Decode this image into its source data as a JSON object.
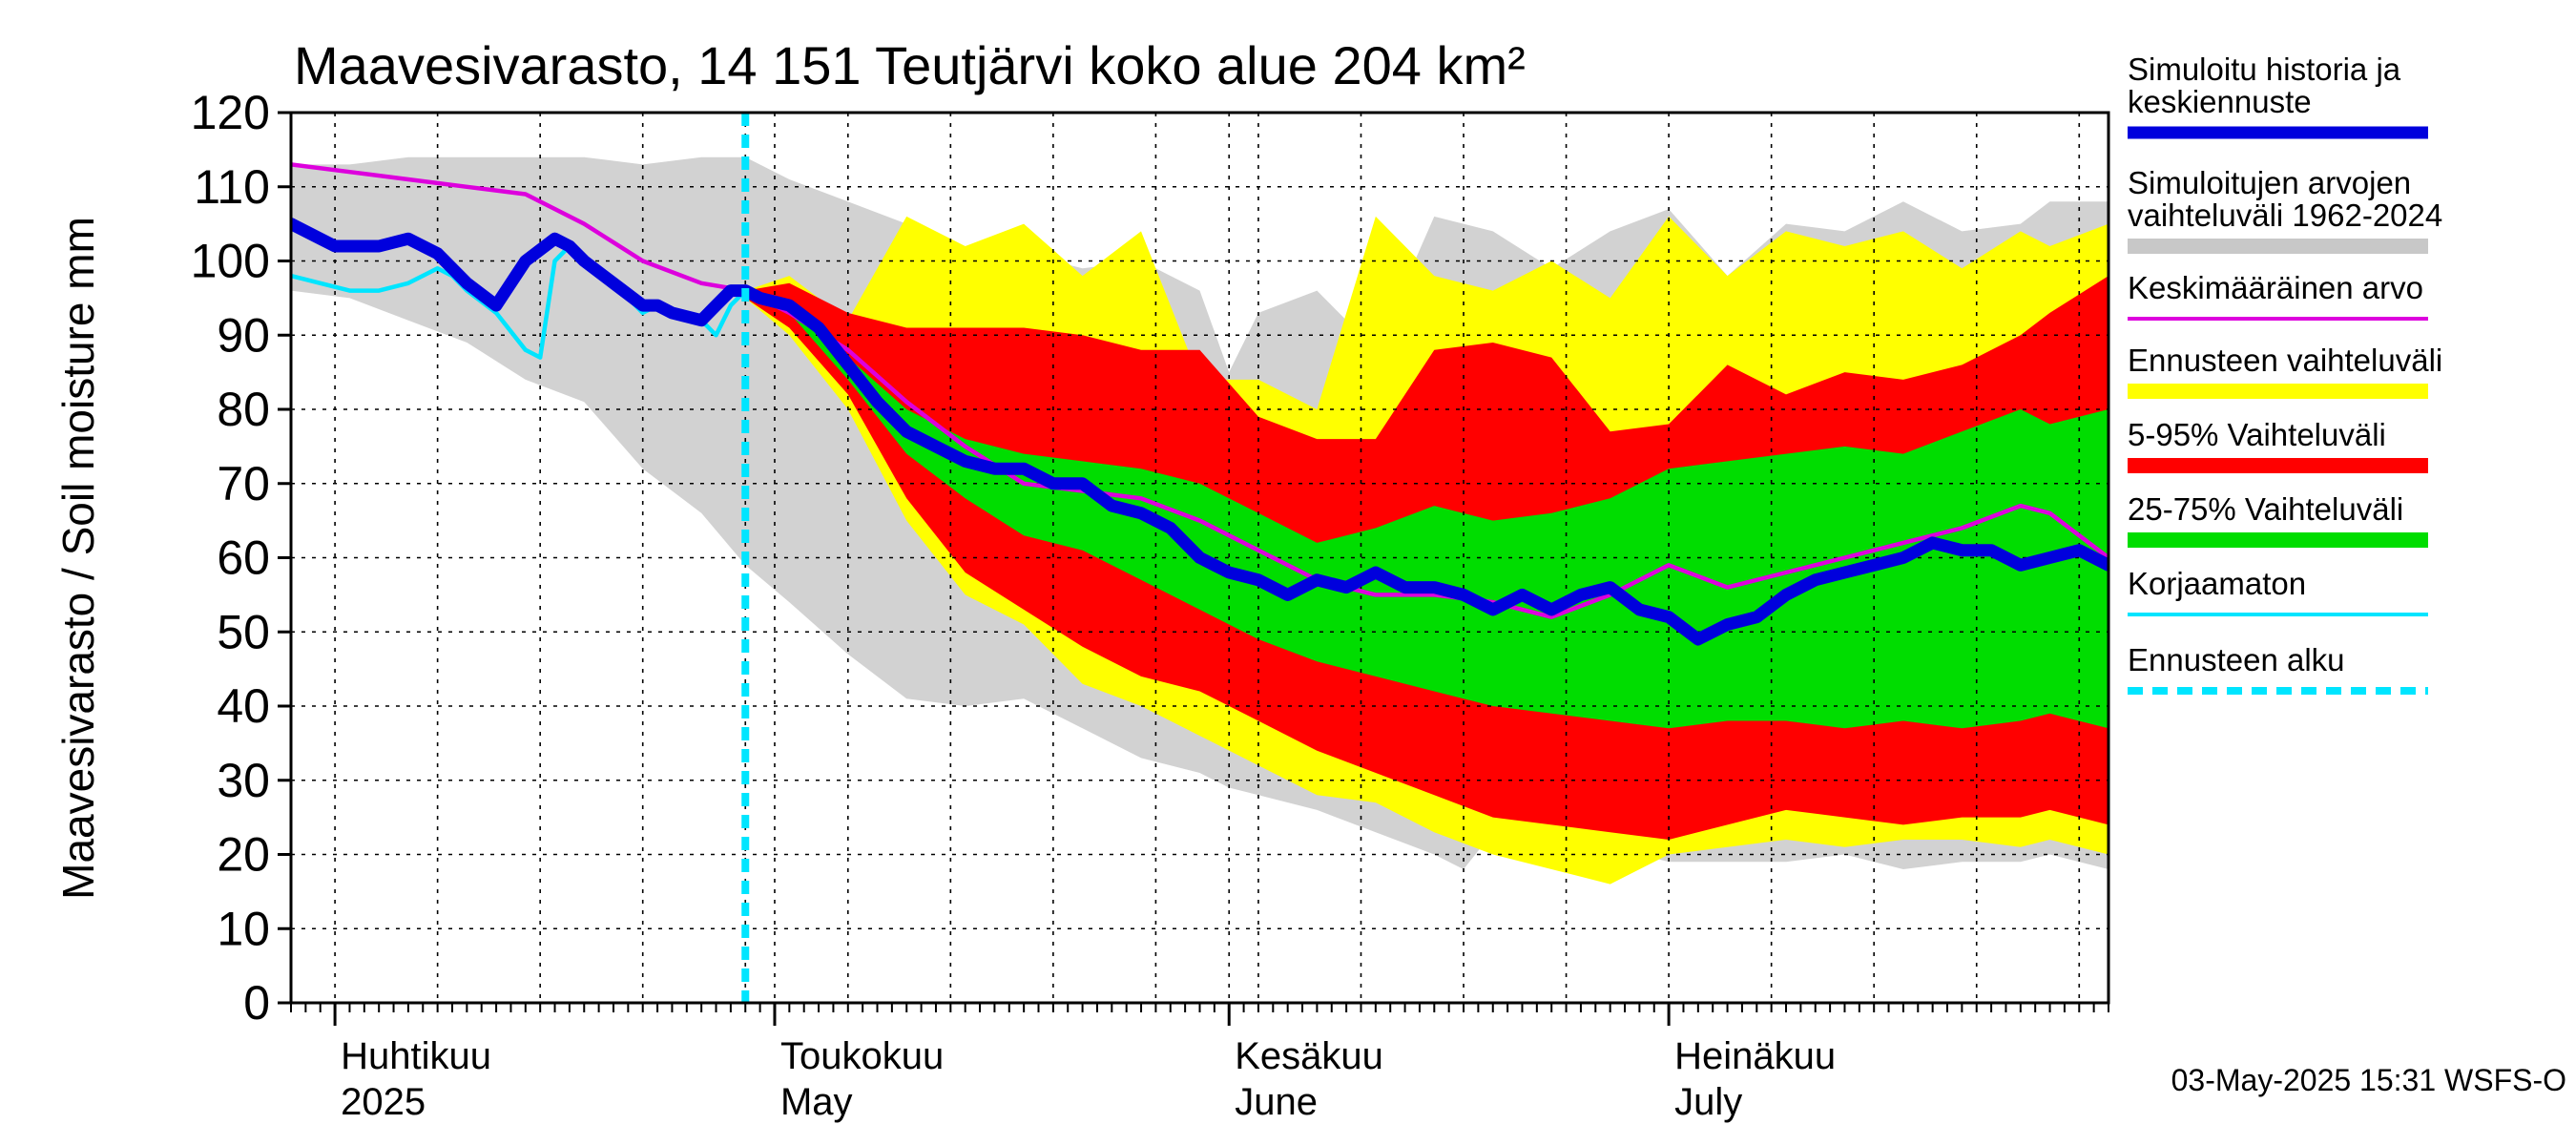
{
  "chart_data": {
    "type": "area",
    "title": "Maavesivarasto, 14 151 Teutjärvi koko alue 204 km²",
    "ylabel": "Maavesivarasto / Soil moisture   mm",
    "xlabel": "",
    "ylim": [
      0,
      120
    ],
    "yticks": [
      0,
      10,
      20,
      30,
      40,
      50,
      60,
      70,
      80,
      90,
      100,
      110,
      120
    ],
    "xlim_days": [
      0,
      124
    ],
    "x_unit": "days since 2025-03-29",
    "month_starts": [
      3,
      33,
      64,
      94
    ],
    "forecast_start": 31,
    "grid": true,
    "month_labels": [
      {
        "fi": "Huhtikuu",
        "en": "2025"
      },
      {
        "fi": "Toukokuu",
        "en": "May"
      },
      {
        "fi": "Kesäkuu",
        "en": "June"
      },
      {
        "fi": "Heinäkuu",
        "en": "July"
      }
    ],
    "legend": [
      {
        "label": "Simuloitu historia ja keskiennuste",
        "lines": [
          "Simuloitu historia ja",
          "keskiennuste"
        ],
        "color": "#0000dd",
        "style": "thick"
      },
      {
        "label": "Simuloitujen arvojen vaihteluväli 1962-2024",
        "lines": [
          "Simuloitujen arvojen",
          "vaihteluväli 1962-2024"
        ],
        "color": "#c8c8c8",
        "style": "band"
      },
      {
        "label": "Keskimääräinen arvo",
        "lines": [
          "Keskimääräinen arvo"
        ],
        "color": "#dd00dd",
        "style": "thin"
      },
      {
        "label": "Ennusteen vaihteluväli",
        "lines": [
          "Ennusteen vaihteluväli"
        ],
        "color": "#ffff00",
        "style": "band"
      },
      {
        "label": "5-95% Vaihteluväli",
        "lines": [
          "5-95% Vaihteluväli"
        ],
        "color": "#ff0000",
        "style": "band"
      },
      {
        "label": "25-75% Vaihteluväli",
        "lines": [
          "25-75% Vaihteluväli"
        ],
        "color": "#00dd00",
        "style": "band"
      },
      {
        "label": "Korjaamaton",
        "lines": [
          "Korjaamaton"
        ],
        "color": "#00e5ff",
        "style": "thin"
      },
      {
        "label": "Ennusteen alku",
        "lines": [
          "Ennusteen alku"
        ],
        "color": "#00e5ff",
        "style": "dashed"
      }
    ],
    "series": {
      "history_range": {
        "name": "Simuloitujen arvojen vaihteluväli 1962-2024",
        "x": [
          0,
          4,
          8,
          12,
          16,
          20,
          24,
          28,
          31,
          34,
          38,
          42,
          46,
          50,
          54,
          58,
          62,
          64,
          66,
          70,
          74,
          78,
          80,
          82,
          86,
          90,
          94,
          98,
          102,
          106,
          110,
          114,
          118,
          120,
          124
        ],
        "upper": [
          113,
          113,
          114,
          114,
          114,
          114,
          113,
          114,
          114,
          111,
          108,
          105,
          102,
          101,
          99,
          100,
          96,
          85,
          93,
          96,
          88,
          106,
          105,
          104,
          99,
          104,
          107,
          98,
          105,
          104,
          108,
          104,
          105,
          108,
          108
        ],
        "lower": [
          96,
          95,
          92,
          89,
          84,
          81,
          72,
          66,
          59,
          54,
          47,
          41,
          40,
          41,
          37,
          33,
          31,
          29,
          28,
          26,
          23,
          20,
          18,
          23,
          23,
          21,
          19,
          19,
          19,
          20,
          18,
          19,
          19,
          20,
          18
        ]
      },
      "forecast_range": {
        "name": "Ennusteen vaihteluväli",
        "x": [
          31,
          34,
          38,
          42,
          46,
          50,
          54,
          58,
          62,
          66,
          70,
          74,
          78,
          82,
          86,
          90,
          94,
          98,
          102,
          106,
          110,
          114,
          118,
          120,
          124
        ],
        "upper": [
          96,
          98,
          92,
          106,
          102,
          105,
          98,
          104,
          84,
          84,
          80,
          106,
          98,
          96,
          100,
          95,
          106,
          98,
          104,
          102,
          104,
          99,
          104,
          102,
          105
        ],
        "lower": [
          95,
          90,
          80,
          65,
          55,
          51,
          43,
          40,
          36,
          32,
          28,
          27,
          23,
          20,
          18,
          16,
          20,
          21,
          22,
          21,
          22,
          22,
          21,
          22,
          20
        ]
      },
      "p5_95": {
        "name": "5-95% Vaihteluväli",
        "x": [
          31,
          34,
          38,
          42,
          46,
          50,
          54,
          58,
          62,
          66,
          70,
          74,
          78,
          82,
          86,
          90,
          94,
          98,
          102,
          106,
          110,
          114,
          118,
          120,
          124
        ],
        "upper": [
          96,
          97,
          93,
          91,
          91,
          91,
          90,
          88,
          88,
          79,
          76,
          76,
          88,
          89,
          87,
          77,
          78,
          86,
          82,
          85,
          84,
          86,
          90,
          93,
          98
        ],
        "lower": [
          95,
          91,
          82,
          68,
          58,
          53,
          48,
          44,
          42,
          38,
          34,
          31,
          28,
          25,
          24,
          23,
          22,
          24,
          26,
          25,
          24,
          25,
          25,
          26,
          24
        ]
      },
      "p25_75": {
        "name": "25-75% Vaihteluväli",
        "x": [
          31,
          34,
          38,
          42,
          46,
          50,
          54,
          58,
          62,
          66,
          70,
          74,
          78,
          82,
          86,
          90,
          94,
          98,
          102,
          106,
          110,
          114,
          118,
          120,
          124
        ],
        "upper": [
          95,
          94,
          87,
          80,
          76,
          74,
          73,
          72,
          70,
          66,
          62,
          64,
          67,
          65,
          66,
          68,
          72,
          73,
          74,
          75,
          74,
          77,
          80,
          78,
          80
        ],
        "lower": [
          95,
          93,
          84,
          74,
          68,
          63,
          61,
          57,
          53,
          49,
          46,
          44,
          42,
          40,
          39,
          38,
          37,
          38,
          38,
          37,
          38,
          37,
          38,
          39,
          37
        ]
      },
      "mean": {
        "name": "Keskimääräinen arvo",
        "x": [
          0,
          4,
          8,
          12,
          16,
          20,
          24,
          28,
          31,
          34,
          38,
          42,
          46,
          50,
          54,
          58,
          62,
          66,
          70,
          74,
          78,
          82,
          86,
          90,
          94,
          98,
          102,
          106,
          110,
          114,
          118,
          120,
          124
        ],
        "values": [
          113,
          112,
          111,
          110,
          109,
          105,
          100,
          97,
          96,
          93,
          88,
          81,
          75,
          70,
          69,
          68,
          65,
          61,
          57,
          55,
          55,
          54,
          52,
          55,
          59,
          56,
          58,
          60,
          62,
          64,
          67,
          66,
          60
        ]
      },
      "simulated": {
        "name": "Simuloitu historia ja keskiennuste",
        "x": [
          0,
          3,
          6,
          8,
          10,
          12,
          14,
          16,
          18,
          19,
          20,
          22,
          24,
          25,
          26,
          28,
          29,
          30,
          31,
          32,
          34,
          36,
          38,
          40,
          42,
          44,
          46,
          48,
          50,
          52,
          54,
          56,
          58,
          60,
          62,
          64,
          66,
          68,
          70,
          72,
          74,
          76,
          78,
          80,
          82,
          84,
          86,
          88,
          90,
          92,
          94,
          96,
          98,
          100,
          102,
          104,
          106,
          108,
          110,
          112,
          114,
          116,
          118,
          120,
          122,
          124
        ],
        "values": [
          105,
          102,
          102,
          103,
          101,
          97,
          94,
          100,
          103,
          102,
          100,
          97,
          94,
          94,
          93,
          92,
          94,
          96,
          96,
          95,
          94,
          91,
          86,
          81,
          77,
          75,
          73,
          72,
          72,
          70,
          70,
          67,
          66,
          64,
          60,
          58,
          57,
          55,
          57,
          56,
          58,
          56,
          56,
          55,
          53,
          55,
          53,
          55,
          56,
          53,
          52,
          49,
          51,
          52,
          55,
          57,
          58,
          59,
          60,
          62,
          61,
          61,
          59,
          60,
          61,
          59
        ]
      },
      "uncorrected": {
        "name": "Korjaamaton",
        "x": [
          0,
          2,
          4,
          6,
          8,
          10,
          11,
          12,
          14,
          16,
          17,
          18,
          19,
          20,
          22,
          24,
          25,
          26,
          28,
          29,
          30,
          31
        ],
        "values": [
          98,
          97,
          96,
          96,
          97,
          99,
          98,
          96,
          93,
          88,
          87,
          100,
          102,
          100,
          97,
          93,
          94,
          93,
          92,
          90,
          94,
          96
        ]
      }
    },
    "footer": "03-May-2025 15:31 WSFS-O"
  }
}
